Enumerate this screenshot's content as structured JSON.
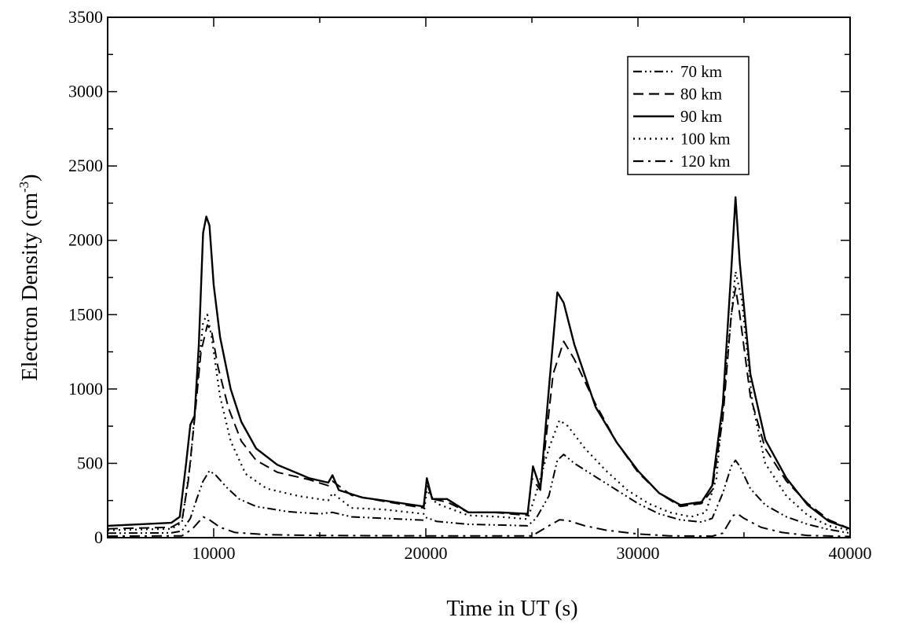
{
  "chart_data": {
    "type": "line",
    "title": "",
    "xlabel": "Time in UT (s)",
    "ylabel": "Electron Density (cm",
    "ylabel_superscript": "-3",
    "ylabel_close": ")",
    "xlim": [
      5000,
      40000
    ],
    "ylim": [
      0,
      3500
    ],
    "xticks": [
      10000,
      20000,
      30000,
      40000
    ],
    "xtick_labels": [
      "10000",
      "20000",
      "30000",
      "40000"
    ],
    "yticks": [
      0,
      500,
      1000,
      1500,
      2000,
      2500,
      3000,
      3500
    ],
    "ytick_labels": [
      "0",
      "500",
      "1000",
      "1500",
      "2000",
      "2500",
      "3000",
      "3500"
    ],
    "grid": false,
    "legend_position": "top-right",
    "series": [
      {
        "name": "70 km",
        "dash": "dash-dot-dot",
        "points": [
          [
            5000,
            30
          ],
          [
            8000,
            32
          ],
          [
            8500,
            45
          ],
          [
            8900,
            130
          ],
          [
            9200,
            260
          ],
          [
            9500,
            380
          ],
          [
            9800,
            450
          ],
          [
            10100,
            420
          ],
          [
            10600,
            340
          ],
          [
            11200,
            260
          ],
          [
            12000,
            210
          ],
          [
            13500,
            175
          ],
          [
            15000,
            160
          ],
          [
            15600,
            170
          ],
          [
            16500,
            140
          ],
          [
            18000,
            130
          ],
          [
            19900,
            118
          ],
          [
            20050,
            135
          ],
          [
            20500,
            110
          ],
          [
            22000,
            90
          ],
          [
            23500,
            85
          ],
          [
            24800,
            80
          ],
          [
            25200,
            130
          ],
          [
            25800,
            280
          ],
          [
            26200,
            520
          ],
          [
            26500,
            560
          ],
          [
            27000,
            500
          ],
          [
            28000,
            410
          ],
          [
            29000,
            320
          ],
          [
            30000,
            230
          ],
          [
            31000,
            160
          ],
          [
            32000,
            120
          ],
          [
            33000,
            105
          ],
          [
            33500,
            130
          ],
          [
            34000,
            300
          ],
          [
            34400,
            480
          ],
          [
            34600,
            520
          ],
          [
            34800,
            480
          ],
          [
            35300,
            330
          ],
          [
            36000,
            220
          ],
          [
            37000,
            140
          ],
          [
            38000,
            90
          ],
          [
            39000,
            55
          ],
          [
            40000,
            30
          ]
        ]
      },
      {
        "name": "80 km",
        "dash": "dash",
        "points": [
          [
            5000,
            60
          ],
          [
            8000,
            70
          ],
          [
            8500,
            110
          ],
          [
            8800,
            380
          ],
          [
            9100,
            800
          ],
          [
            9400,
            1250
          ],
          [
            9700,
            1430
          ],
          [
            9900,
            1390
          ],
          [
            10200,
            1150
          ],
          [
            10700,
            870
          ],
          [
            11300,
            650
          ],
          [
            12000,
            520
          ],
          [
            13000,
            440
          ],
          [
            14500,
            390
          ],
          [
            15400,
            350
          ],
          [
            15600,
            380
          ],
          [
            16500,
            285
          ],
          [
            18000,
            245
          ],
          [
            19900,
            200
          ],
          [
            20050,
            370
          ],
          [
            20300,
            260
          ],
          [
            21000,
            240
          ],
          [
            22000,
            170
          ],
          [
            23200,
            170
          ],
          [
            24800,
            150
          ],
          [
            25000,
            400
          ],
          [
            25400,
            320
          ],
          [
            26000,
            1100
          ],
          [
            26500,
            1320
          ],
          [
            27000,
            1200
          ],
          [
            28000,
            900
          ],
          [
            29000,
            640
          ],
          [
            30000,
            440
          ],
          [
            31000,
            300
          ],
          [
            32000,
            210
          ],
          [
            33000,
            230
          ],
          [
            33500,
            320
          ],
          [
            34000,
            800
          ],
          [
            34400,
            1500
          ],
          [
            34600,
            1680
          ],
          [
            34800,
            1500
          ],
          [
            35300,
            950
          ],
          [
            36000,
            600
          ],
          [
            37000,
            380
          ],
          [
            38000,
            230
          ],
          [
            39000,
            120
          ],
          [
            40000,
            60
          ]
        ]
      },
      {
        "name": "90 km",
        "dash": "solid",
        "points": [
          [
            5000,
            80
          ],
          [
            8000,
            100
          ],
          [
            8400,
            140
          ],
          [
            8700,
            500
          ],
          [
            8900,
            760
          ],
          [
            9100,
            820
          ],
          [
            9300,
            1300
          ],
          [
            9500,
            2050
          ],
          [
            9650,
            2160
          ],
          [
            9800,
            2100
          ],
          [
            10000,
            1700
          ],
          [
            10300,
            1350
          ],
          [
            10800,
            1000
          ],
          [
            11300,
            780
          ],
          [
            12000,
            600
          ],
          [
            13000,
            490
          ],
          [
            14500,
            400
          ],
          [
            15400,
            370
          ],
          [
            15600,
            420
          ],
          [
            15900,
            320
          ],
          [
            17000,
            270
          ],
          [
            18000,
            250
          ],
          [
            19900,
            210
          ],
          [
            20050,
            400
          ],
          [
            20300,
            260
          ],
          [
            21000,
            260
          ],
          [
            22000,
            170
          ],
          [
            23500,
            170
          ],
          [
            24800,
            160
          ],
          [
            25050,
            480
          ],
          [
            25400,
            330
          ],
          [
            25800,
            1000
          ],
          [
            26200,
            1650
          ],
          [
            26500,
            1580
          ],
          [
            27000,
            1300
          ],
          [
            28000,
            880
          ],
          [
            29000,
            640
          ],
          [
            30000,
            450
          ],
          [
            31000,
            300
          ],
          [
            32000,
            220
          ],
          [
            32500,
            230
          ],
          [
            33000,
            240
          ],
          [
            33500,
            350
          ],
          [
            34000,
            900
          ],
          [
            34400,
            1800
          ],
          [
            34600,
            2290
          ],
          [
            34800,
            1850
          ],
          [
            35300,
            1100
          ],
          [
            36000,
            660
          ],
          [
            37000,
            400
          ],
          [
            38000,
            220
          ],
          [
            39000,
            110
          ],
          [
            40000,
            60
          ]
        ]
      },
      {
        "name": "100 km",
        "dash": "dot",
        "points": [
          [
            5000,
            50
          ],
          [
            8000,
            60
          ],
          [
            8500,
            100
          ],
          [
            8900,
            500
          ],
          [
            9200,
            1000
          ],
          [
            9500,
            1450
          ],
          [
            9700,
            1500
          ],
          [
            9900,
            1350
          ],
          [
            10300,
            950
          ],
          [
            10800,
            650
          ],
          [
            11500,
            430
          ],
          [
            12500,
            330
          ],
          [
            14000,
            280
          ],
          [
            15400,
            250
          ],
          [
            15600,
            300
          ],
          [
            16500,
            200
          ],
          [
            18000,
            190
          ],
          [
            19900,
            160
          ],
          [
            20050,
            320
          ],
          [
            20500,
            230
          ],
          [
            22000,
            150
          ],
          [
            23500,
            140
          ],
          [
            24800,
            125
          ],
          [
            25200,
            300
          ],
          [
            25800,
            600
          ],
          [
            26300,
            790
          ],
          [
            26700,
            750
          ],
          [
            27500,
            600
          ],
          [
            28500,
            450
          ],
          [
            29500,
            320
          ],
          [
            30500,
            230
          ],
          [
            31500,
            170
          ],
          [
            32500,
            140
          ],
          [
            33200,
            170
          ],
          [
            33700,
            400
          ],
          [
            34200,
            1200
          ],
          [
            34600,
            1790
          ],
          [
            34900,
            1600
          ],
          [
            35400,
            900
          ],
          [
            36000,
            500
          ],
          [
            37000,
            280
          ],
          [
            38000,
            150
          ],
          [
            39000,
            80
          ],
          [
            40000,
            50
          ]
        ]
      },
      {
        "name": "120 km",
        "dash": "dash-dot",
        "points": [
          [
            5000,
            10
          ],
          [
            8500,
            12
          ],
          [
            9000,
            60
          ],
          [
            9500,
            140
          ],
          [
            9800,
            120
          ],
          [
            10300,
            70
          ],
          [
            11000,
            35
          ],
          [
            12500,
            20
          ],
          [
            15000,
            15
          ],
          [
            20000,
            12
          ],
          [
            25000,
            12
          ],
          [
            25800,
            80
          ],
          [
            26300,
            120
          ],
          [
            26700,
            115
          ],
          [
            27500,
            80
          ],
          [
            28500,
            50
          ],
          [
            30000,
            25
          ],
          [
            31500,
            12
          ],
          [
            33500,
            10
          ],
          [
            34000,
            30
          ],
          [
            34500,
            150
          ],
          [
            34700,
            160
          ],
          [
            35000,
            130
          ],
          [
            35800,
            70
          ],
          [
            36800,
            35
          ],
          [
            38000,
            15
          ],
          [
            40000,
            8
          ]
        ]
      }
    ]
  }
}
